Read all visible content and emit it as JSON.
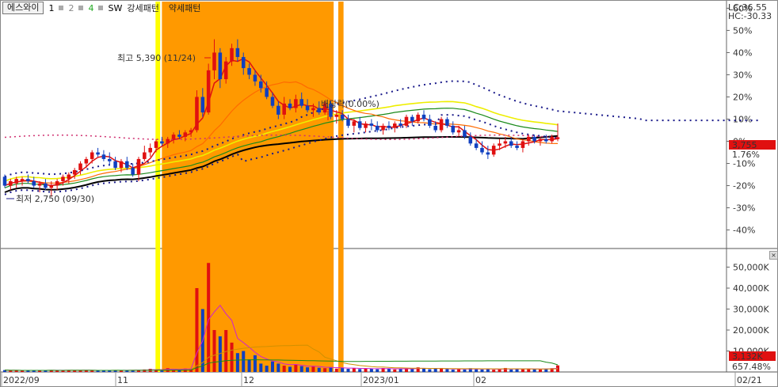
{
  "legend": {
    "name": "에스와이",
    "ma_labels": [
      "1",
      "2",
      "4"
    ],
    "sw": "SW",
    "strong": "강세패턴",
    "weak": "약세패턴",
    "ma_colors": [
      "#000000",
      "#888888",
      "#22aa22"
    ]
  },
  "right": {
    "lc": "LC:36.55",
    "hc": "HC:-30.33",
    "price": "3,755",
    "pct": "1.76%",
    "vol_current": "3,132K",
    "vol_pct": "657.48%"
  },
  "annotations": {
    "high": "최고 5,390 (11/24)",
    "low": "최저 2,750 (09/30)",
    "dividend": "배당락(0.00%)"
  },
  "close_icon": "close-icon",
  "chart_data": [
    {
      "type": "candlestick",
      "title": "",
      "yaxis_ticks": [
        "60%",
        "50%",
        "40%",
        "30%",
        "20%",
        "10%",
        "0%",
        "-10%",
        "-20%",
        "-30%",
        "-40%"
      ],
      "yticks": [
        60,
        50,
        40,
        30,
        20,
        10,
        0,
        -10,
        -20,
        -30,
        -40
      ],
      "xaxis_ticks": [
        "2022/09",
        "11",
        "12",
        "2023/01",
        "02",
        "02/21"
      ],
      "base_price": 3690,
      "shaded_regions": [
        {
          "type": "weak",
          "color": "#ffff00"
        },
        {
          "type": "strong",
          "color": "#ff9900"
        },
        {
          "type": "strong",
          "color": "#ff9900"
        }
      ],
      "candles": [
        {
          "o": -16,
          "h": -15,
          "l": -21,
          "c": -20
        },
        {
          "o": -20,
          "h": -17,
          "l": -22,
          "c": -18
        },
        {
          "o": -19,
          "h": -16,
          "l": -21,
          "c": -17
        },
        {
          "o": -18,
          "h": -16,
          "l": -20,
          "c": -17
        },
        {
          "o": -17,
          "h": -15,
          "l": -19,
          "c": -18
        },
        {
          "o": -18,
          "h": -16,
          "l": -21,
          "c": -20
        },
        {
          "o": -20,
          "h": -18,
          "l": -23,
          "c": -19
        },
        {
          "o": -19,
          "h": -17,
          "l": -22,
          "c": -21
        },
        {
          "o": -21,
          "h": -18,
          "l": -25,
          "c": -20
        },
        {
          "o": -20,
          "h": -17,
          "l": -22,
          "c": -18
        },
        {
          "o": -18,
          "h": -15,
          "l": -20,
          "c": -16
        },
        {
          "o": -17,
          "h": -14,
          "l": -19,
          "c": -15
        },
        {
          "o": -15,
          "h": -12,
          "l": -17,
          "c": -13
        },
        {
          "o": -13,
          "h": -9,
          "l": -15,
          "c": -10
        },
        {
          "o": -10,
          "h": -7,
          "l": -12,
          "c": -8
        },
        {
          "o": -8,
          "h": -4,
          "l": -10,
          "c": -5
        },
        {
          "o": -5,
          "h": -3,
          "l": -7,
          "c": -6
        },
        {
          "o": -6,
          "h": -4,
          "l": -9,
          "c": -8
        },
        {
          "o": -8,
          "h": -5,
          "l": -11,
          "c": -9
        },
        {
          "o": -9,
          "h": -7,
          "l": -13,
          "c": -12
        },
        {
          "o": -12,
          "h": -8,
          "l": -14,
          "c": -9
        },
        {
          "o": -9,
          "h": -7,
          "l": -13,
          "c": -12
        },
        {
          "o": -12,
          "h": -10,
          "l": -16,
          "c": -15
        },
        {
          "o": -15,
          "h": -7,
          "l": -18,
          "c": -8
        },
        {
          "o": -8,
          "h": -2,
          "l": -9,
          "c": -5
        },
        {
          "o": -5,
          "h": -1,
          "l": -7,
          "c": -3
        },
        {
          "o": -3,
          "h": 1,
          "l": -5,
          "c": 0
        },
        {
          "o": 0,
          "h": 2,
          "l": -2,
          "c": -1
        },
        {
          "o": -1,
          "h": 2,
          "l": -3,
          "c": 1
        },
        {
          "o": 1,
          "h": 4,
          "l": -1,
          "c": 3
        },
        {
          "o": 3,
          "h": 5,
          "l": 1,
          "c": 2
        },
        {
          "o": 2,
          "h": 5,
          "l": 0,
          "c": 4
        },
        {
          "o": 4,
          "h": 6,
          "l": 2,
          "c": 5
        },
        {
          "o": 5,
          "h": 23,
          "l": 4,
          "c": 20
        },
        {
          "o": 20,
          "h": 24,
          "l": 11,
          "c": 13
        },
        {
          "o": 13,
          "h": 35,
          "l": 12,
          "c": 32
        },
        {
          "o": 32,
          "h": 46,
          "l": 28,
          "c": 40
        },
        {
          "o": 40,
          "h": 42,
          "l": 24,
          "c": 28
        },
        {
          "o": 28,
          "h": 38,
          "l": 26,
          "c": 36
        },
        {
          "o": 36,
          "h": 44,
          "l": 34,
          "c": 42
        },
        {
          "o": 42,
          "h": 46,
          "l": 36,
          "c": 38
        },
        {
          "o": 38,
          "h": 40,
          "l": 30,
          "c": 33
        },
        {
          "o": 33,
          "h": 35,
          "l": 28,
          "c": 30
        },
        {
          "o": 30,
          "h": 32,
          "l": 25,
          "c": 27
        },
        {
          "o": 27,
          "h": 30,
          "l": 22,
          "c": 24
        },
        {
          "o": 24,
          "h": 27,
          "l": 19,
          "c": 20
        },
        {
          "o": 20,
          "h": 22,
          "l": 15,
          "c": 16
        },
        {
          "o": 16,
          "h": 18,
          "l": 10,
          "c": 12
        },
        {
          "o": 12,
          "h": 20,
          "l": 10,
          "c": 17
        },
        {
          "o": 17,
          "h": 19,
          "l": 14,
          "c": 15
        },
        {
          "o": 15,
          "h": 21,
          "l": 13,
          "c": 19
        },
        {
          "o": 19,
          "h": 22,
          "l": 15,
          "c": 16
        },
        {
          "o": 16,
          "h": 19,
          "l": 13,
          "c": 14
        },
        {
          "o": 14,
          "h": 17,
          "l": 11,
          "c": 15
        },
        {
          "o": 15,
          "h": 18,
          "l": 12,
          "c": 13
        },
        {
          "o": 13,
          "h": 18,
          "l": 12,
          "c": 17
        },
        {
          "o": 17,
          "h": 18,
          "l": 10,
          "c": 11
        },
        {
          "o": 11,
          "h": 14,
          "l": 8,
          "c": 12
        },
        {
          "o": 12,
          "h": 14,
          "l": 9,
          "c": 10
        },
        {
          "o": 10,
          "h": 12,
          "l": 6,
          "c": 7
        },
        {
          "o": 7,
          "h": 10,
          "l": 4,
          "c": 9
        },
        {
          "o": 9,
          "h": 11,
          "l": 5,
          "c": 6
        },
        {
          "o": 6,
          "h": 9,
          "l": 4,
          "c": 8
        },
        {
          "o": 8,
          "h": 10,
          "l": 5,
          "c": 7
        },
        {
          "o": 7,
          "h": 9,
          "l": 4,
          "c": 5
        },
        {
          "o": 5,
          "h": 8,
          "l": 3,
          "c": 7
        },
        {
          "o": 7,
          "h": 9,
          "l": 5,
          "c": 6
        },
        {
          "o": 6,
          "h": 9,
          "l": 4,
          "c": 8
        },
        {
          "o": 8,
          "h": 10,
          "l": 6,
          "c": 7
        },
        {
          "o": 7,
          "h": 12,
          "l": 6,
          "c": 11
        },
        {
          "o": 11,
          "h": 12,
          "l": 7,
          "c": 9
        },
        {
          "o": 9,
          "h": 13,
          "l": 8,
          "c": 12
        },
        {
          "o": 12,
          "h": 14,
          "l": 9,
          "c": 10
        },
        {
          "o": 10,
          "h": 12,
          "l": 6,
          "c": 7
        },
        {
          "o": 7,
          "h": 9,
          "l": 4,
          "c": 5
        },
        {
          "o": 5,
          "h": 11,
          "l": 4,
          "c": 10
        },
        {
          "o": 10,
          "h": 11,
          "l": 6,
          "c": 7
        },
        {
          "o": 7,
          "h": 9,
          "l": 3,
          "c": 4
        },
        {
          "o": 4,
          "h": 7,
          "l": 2,
          "c": 5
        },
        {
          "o": 5,
          "h": 7,
          "l": 1,
          "c": 2
        },
        {
          "o": 2,
          "h": 4,
          "l": -2,
          "c": -1
        },
        {
          "o": -1,
          "h": 1,
          "l": -4,
          "c": -3
        },
        {
          "o": -3,
          "h": 0,
          "l": -6,
          "c": -5
        },
        {
          "o": -5,
          "h": -2,
          "l": -8,
          "c": -6
        },
        {
          "o": -6,
          "h": -1,
          "l": -7,
          "c": -2
        },
        {
          "o": -2,
          "h": 1,
          "l": -4,
          "c": -1
        },
        {
          "o": -1,
          "h": 2,
          "l": -3,
          "c": 0
        },
        {
          "o": 0,
          "h": 2,
          "l": -3,
          "c": -2
        },
        {
          "o": -2,
          "h": 0,
          "l": -4,
          "c": -3
        },
        {
          "o": -3,
          "h": 1,
          "l": -5,
          "c": 0
        },
        {
          "o": 0,
          "h": 3,
          "l": -2,
          "c": 2
        },
        {
          "o": 2,
          "h": 3,
          "l": -1,
          "c": 0
        },
        {
          "o": 0,
          "h": 2,
          "l": -2,
          "c": 1
        },
        {
          "o": 1,
          "h": 3,
          "l": -1,
          "c": 0
        },
        {
          "o": 0,
          "h": 3,
          "l": -1,
          "c": 2
        },
        {
          "o": 1,
          "h": 8,
          "l": 0,
          "c": 1.8
        }
      ],
      "volume": {
        "yaxis_ticks": [
          "50,000K",
          "40,000K",
          "30,000K",
          "20,000K",
          "10,000K"
        ],
        "yticks": [
          50000,
          40000,
          30000,
          20000,
          10000
        ],
        "values": [
          900,
          700,
          800,
          600,
          700,
          900,
          800,
          700,
          900,
          700,
          800,
          900,
          700,
          800,
          900,
          700,
          600,
          800,
          700,
          900,
          800,
          700,
          900,
          800,
          1200,
          1500,
          1100,
          900,
          1800,
          1400,
          1200,
          1600,
          1300,
          40000,
          30000,
          52000,
          20000,
          17000,
          20000,
          14000,
          9000,
          10000,
          6000,
          8000,
          4000,
          3000,
          5000,
          4000,
          3000,
          2500,
          3500,
          2800,
          2200,
          2600,
          2000,
          1800,
          2300,
          1600,
          2100,
          1500,
          1800,
          1400,
          1700,
          1600,
          1300,
          1900,
          1500,
          1200,
          1700,
          1400,
          1800,
          2200,
          1600,
          1300,
          1500,
          1900,
          1400,
          1100,
          1500,
          1200,
          1800,
          1300,
          1200,
          1600,
          1100,
          1400,
          1900,
          1200,
          1500,
          1300,
          1700,
          1400,
          1200,
          1600,
          1800,
          3132
        ],
        "ylim": [
          0,
          57000
        ]
      }
    }
  ]
}
